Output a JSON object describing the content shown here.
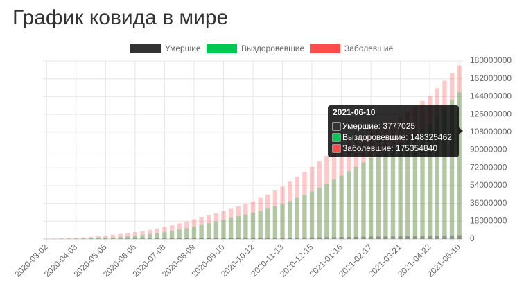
{
  "chart_data": {
    "type": "bar",
    "title": "График ковида в мире",
    "categories": [
      "2020-03-02",
      null,
      null,
      null,
      "2020-04-03",
      null,
      null,
      null,
      "2020-05-05",
      null,
      null,
      null,
      "2020-06-06",
      null,
      null,
      null,
      "2020-07-08",
      null,
      null,
      null,
      "2020-08-09",
      null,
      null,
      null,
      "2020-09-10",
      null,
      null,
      null,
      "2020-10-12",
      null,
      null,
      null,
      "2020-11-13",
      null,
      null,
      null,
      "2020-12-15",
      null,
      null,
      null,
      "2021-01-16",
      null,
      null,
      null,
      "2021-02-17",
      null,
      null,
      null,
      "2021-03-21",
      null,
      null,
      null,
      "2021-04-22",
      null,
      null,
      null,
      "2021-06-10"
    ],
    "series": [
      {
        "name": "Умершие",
        "color": "#333333",
        "values": [
          3000,
          10000,
          20000,
          40000,
          60000,
          110000,
          160000,
          210000,
          260000,
          300000,
          330000,
          370000,
          400000,
          440000,
          480000,
          510000,
          550000,
          600000,
          640000,
          690000,
          730000,
          780000,
          820000,
          870000,
          910000,
          950000,
          1000000,
          1040000,
          1080000,
          1140000,
          1190000,
          1250000,
          1300000,
          1380000,
          1470000,
          1550000,
          1640000,
          1740000,
          1830000,
          1930000,
          2030000,
          2130000,
          2230000,
          2330000,
          2430000,
          2500000,
          2570000,
          2630000,
          2700000,
          2800000,
          2900000,
          3000000,
          3100000,
          3270000,
          3440000,
          3610000,
          3777025
        ]
      },
      {
        "name": "Выздоровевшие",
        "color": "#00c853",
        "values": [
          50000,
          80000,
          120000,
          160000,
          200000,
          450000,
          700000,
          950000,
          1200000,
          1700000,
          2200000,
          2700000,
          3200000,
          4100000,
          5000000,
          5900000,
          6800000,
          8200000,
          9600000,
          11000000,
          12400000,
          14200000,
          15900000,
          17700000,
          19500000,
          21200000,
          23000000,
          24800000,
          26500000,
          28600000,
          30700000,
          32900000,
          35000000,
          38200000,
          41500000,
          44800000,
          48000000,
          52000000,
          56000000,
          60000000,
          64000000,
          68500000,
          73000000,
          77500000,
          82000000,
          85500000,
          89000000,
          92500000,
          96000000,
          101000000,
          106000000,
          111000000,
          116000000,
          124000000,
          132000000,
          140000000,
          148325462
        ]
      },
      {
        "name": "Заболевшие",
        "color": "#ff4d4d",
        "values": [
          90000,
          300000,
          500000,
          750000,
          1000000,
          1600000,
          2200000,
          2900000,
          3600000,
          4400000,
          5200000,
          6000000,
          6900000,
          8000000,
          9200000,
          10600000,
          12000000,
          13900000,
          15800000,
          17800000,
          19800000,
          21800000,
          23800000,
          25900000,
          28000000,
          30500000,
          33000000,
          35500000,
          38000000,
          41500000,
          45000000,
          49000000,
          53000000,
          58000000,
          63000000,
          68000000,
          73000000,
          78500000,
          84000000,
          89000000,
          94000000,
          98000000,
          102000000,
          106000000,
          110000000,
          113000000,
          116500000,
          119500000,
          123000000,
          128500000,
          134000000,
          139500000,
          145000000,
          152500000,
          160000000,
          167500000,
          175354840
        ]
      }
    ],
    "ylim": [
      0,
      180000000
    ],
    "yticks": [
      0,
      18000000,
      36000000,
      54000000,
      72000000,
      90000000,
      108000000,
      126000000,
      144000000,
      162000000,
      180000000
    ],
    "grid": true,
    "legend": "top",
    "tooltip": {
      "title": "2021-06-10",
      "lines": [
        "Умершие: 3777025",
        "Выздоровевшие: 148325462",
        "Заболевшие: 175354840"
      ]
    }
  }
}
